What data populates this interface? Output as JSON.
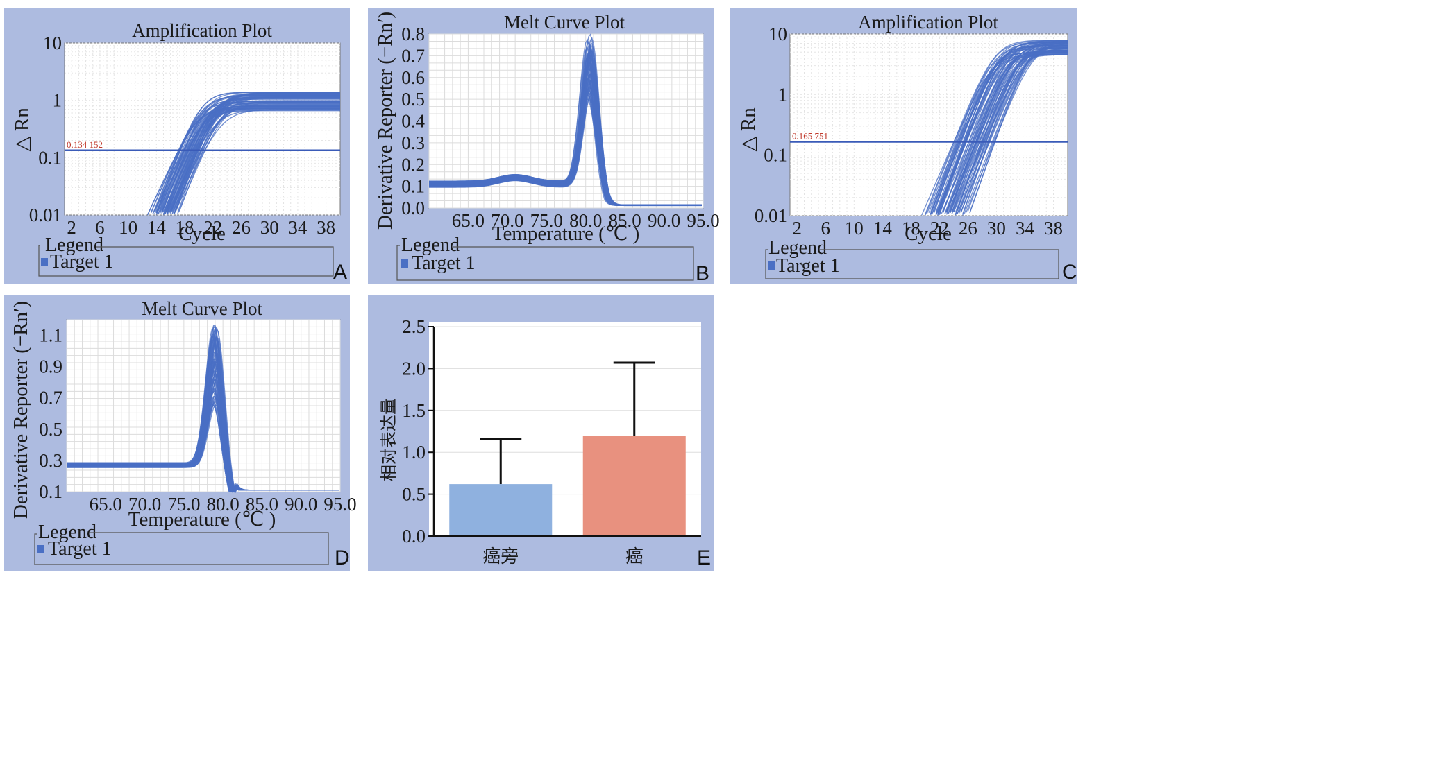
{
  "colors": {
    "panel_bg": "#adbbe0",
    "curve": "#4a6fc4",
    "threshold": "#3a5bb8",
    "threshold_label": "#c0392b",
    "bar_1": "#8fb1df",
    "bar_2": "#e8917f"
  },
  "chart_data": [
    {
      "id": "A",
      "type": "line",
      "title": "Amplification Plot",
      "xlabel": "Cycle",
      "ylabel": "△ Rn",
      "y_scale": "log",
      "xlim": [
        1,
        40
      ],
      "ylim": [
        0.01,
        10
      ],
      "x_ticks": [
        "2",
        "6",
        "10",
        "14",
        "18",
        "22",
        "26",
        "30",
        "34",
        "38"
      ],
      "y_ticks": [
        "0.01",
        "0.1",
        "1",
        "10"
      ],
      "threshold": 0.134152,
      "threshold_label": "0.134 152",
      "legend_title": "Legend",
      "legend": [
        "Target 1"
      ],
      "series_summary": {
        "plateau_range": [
          0.65,
          1.4
        ],
        "ct_range": [
          17,
          21
        ]
      },
      "panel_label": "A"
    },
    {
      "id": "B",
      "type": "line",
      "title": "Melt Curve Plot",
      "xlabel": "Temperature (℃ )",
      "ylabel": "Derivative Reporter (−Rn′)",
      "xlim": [
        60,
        95
      ],
      "ylim": [
        0,
        0.8
      ],
      "x_ticks": [
        "65.0",
        "70.0",
        "75.0",
        "80.0",
        "85.0",
        "90.0",
        "95.0"
      ],
      "y_ticks": [
        "0.0",
        "0.1",
        "0.2",
        "0.3",
        "0.4",
        "0.5",
        "0.6",
        "0.7",
        "0.8"
      ],
      "legend_title": "Legend",
      "legend": [
        "Target 1"
      ],
      "series_summary": {
        "peak_temperature": 80.5,
        "peak_range": [
          0.5,
          0.8
        ],
        "baseline": 0.11
      },
      "panel_label": "B"
    },
    {
      "id": "C",
      "type": "line",
      "title": "Amplification Plot",
      "xlabel": "Cycle",
      "ylabel": "△ Rn",
      "y_scale": "log",
      "xlim": [
        1,
        40
      ],
      "ylim": [
        0.01,
        10
      ],
      "x_ticks": [
        "2",
        "6",
        "10",
        "14",
        "18",
        "22",
        "26",
        "30",
        "34",
        "38"
      ],
      "y_ticks": [
        "0.01",
        "0.1",
        "1",
        "10"
      ],
      "threshold": 0.165751,
      "threshold_label": "0.165 751",
      "legend_title": "Legend",
      "legend": [
        "Target 1"
      ],
      "series_summary": {
        "plateau_range": [
          4.5,
          8
        ],
        "ct_range": [
          24,
          30
        ]
      },
      "panel_label": "C"
    },
    {
      "id": "D",
      "type": "line",
      "title": "Melt Curve Plot",
      "xlabel": "Temperature (℃ )",
      "ylabel": "Derivative Reporter (−Rn′)",
      "xlim": [
        60,
        95
      ],
      "ylim": [
        0.1,
        1.2
      ],
      "x_ticks": [
        "65.0",
        "70.0",
        "75.0",
        "80.0",
        "85.0",
        "90.0",
        "95.0"
      ],
      "y_ticks": [
        "0.1",
        "0.3",
        "0.5",
        "0.7",
        "0.9",
        "1.1"
      ],
      "legend_title": "Legend",
      "legend": [
        "Target 1"
      ],
      "series_summary": {
        "peak_temperature": 79,
        "peak_range": [
          0.65,
          1.18
        ],
        "baseline": 0.27
      },
      "panel_label": "D"
    },
    {
      "id": "E",
      "type": "bar",
      "categories": [
        "癌旁",
        "癌"
      ],
      "values": [
        0.62,
        1.2
      ],
      "error_upper": [
        1.16,
        2.07
      ],
      "ylabel": "相对表达量",
      "ylim": [
        0,
        2.5
      ],
      "y_ticks": [
        "0.0",
        "0.5",
        "1.0",
        "1.5",
        "2.0",
        "2.5"
      ],
      "panel_label": "E"
    }
  ]
}
